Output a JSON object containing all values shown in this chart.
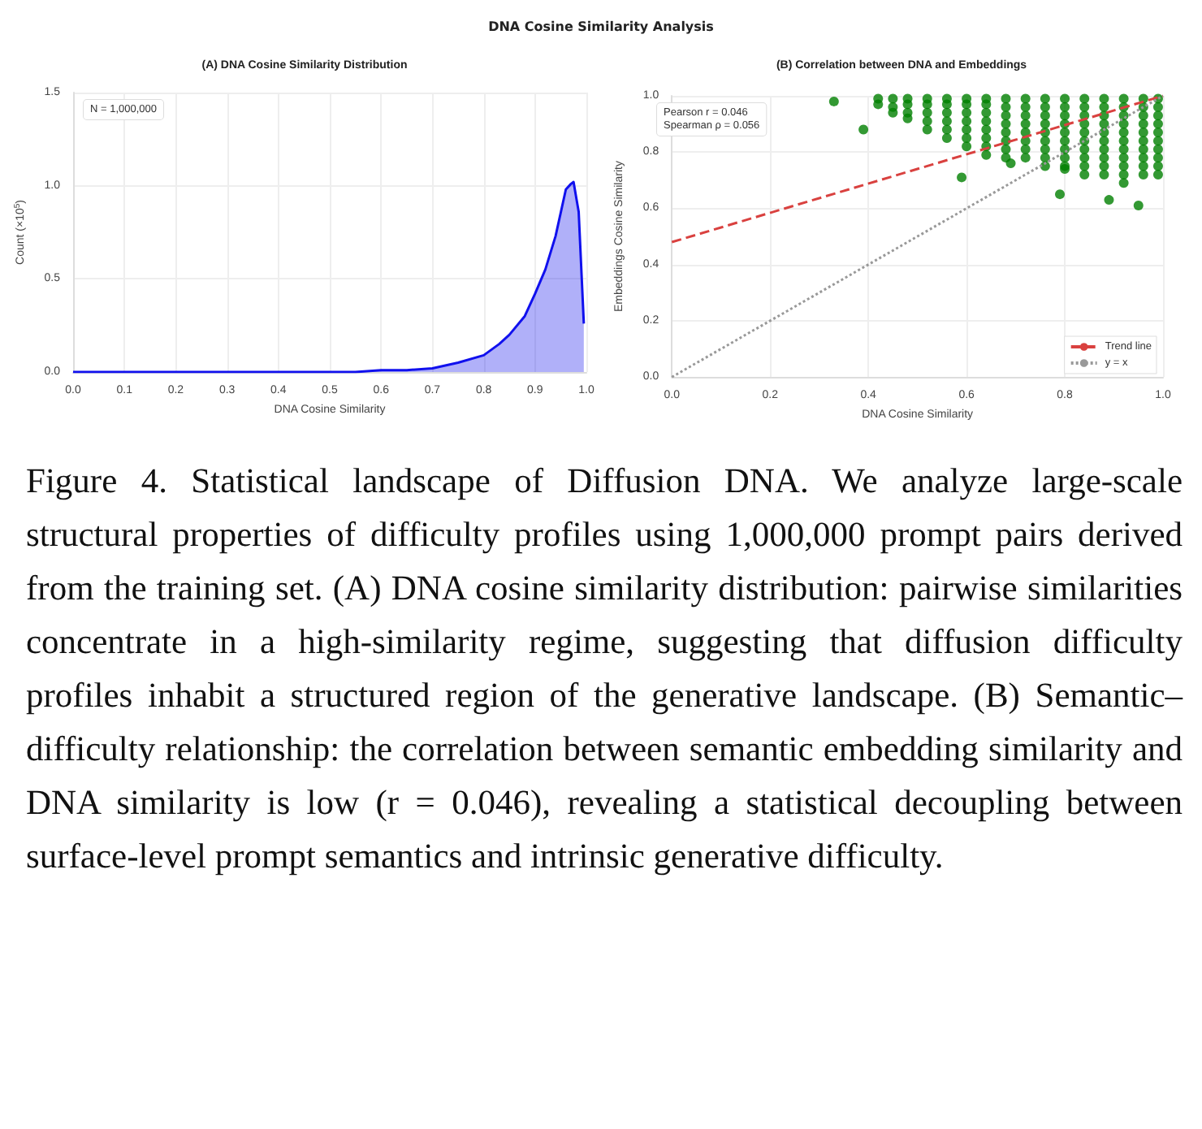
{
  "chart_data": [
    {
      "type": "area",
      "title": "DNA Cosine Similarity Analysis",
      "subtitle": "(A) DNA Cosine Similarity Distribution",
      "xlabel": "DNA Cosine Similarity",
      "ylabel": "Count (×10$^{5}$)",
      "annotations": [
        "N = 1,000,000"
      ],
      "x": [
        0,
        0.1,
        0.2,
        0.3,
        0.4,
        0.5,
        0.55,
        0.6,
        0.65,
        0.7,
        0.75,
        0.8,
        0.83,
        0.85,
        0.88,
        0.9,
        0.92,
        0.94,
        0.96,
        0.97,
        0.975,
        0.985,
        0.995
      ],
      "series": [
        {
          "color": "#1010ee",
          "values": [
            0,
            0,
            0,
            0,
            0,
            0,
            0,
            0.01,
            0.01,
            0.02,
            0.05,
            0.09,
            0.15,
            0.2,
            0.3,
            0.42,
            0.55,
            0.73,
            0.98,
            1.01,
            1.02,
            0.86,
            0.26
          ]
        }
      ],
      "xlim": [
        0,
        1
      ],
      "xticks": [
        {
          "value": 0,
          "label": "0.0"
        },
        {
          "value": 0.1,
          "label": "0.1"
        },
        {
          "value": 0.2,
          "label": "0.2"
        },
        {
          "value": 0.3,
          "label": "0.3"
        },
        {
          "value": 0.4,
          "label": "0.4"
        },
        {
          "value": 0.5,
          "label": "0.5"
        },
        {
          "value": 0.6,
          "label": "0.6"
        },
        {
          "value": 0.7,
          "label": "0.7"
        },
        {
          "value": 0.8,
          "label": "0.8"
        },
        {
          "value": 0.9,
          "label": "0.9"
        },
        {
          "value": 1,
          "label": "1.0"
        }
      ],
      "ylim": [
        0,
        1.5
      ],
      "yticks": [
        {
          "value": 0,
          "label": "0.0"
        },
        {
          "value": 0.5,
          "label": "0.5"
        },
        {
          "value": 1,
          "label": "1.0"
        },
        {
          "value": 1.5,
          "label": "1.5"
        }
      ],
      "grid": true,
      "legend": false
    },
    {
      "type": "scatter",
      "title": "(B) Correlation between DNA and Embeddings",
      "xlabel": "DNA Cosine Similarity",
      "ylabel": "Embeddings Cosine Similarity",
      "annotations": [
        "Pearson r = 0.046",
        "Spearman ρ = 0.056"
      ],
      "series": [
        {
          "type": "scatter",
          "color": "#008000",
          "marker": "circle",
          "x": [
            0.33,
            0.39,
            0.59,
            0.69,
            0.79,
            0.89,
            0.95,
            0.42,
            0.42,
            0.45,
            0.45,
            0.45,
            0.48,
            0.48,
            0.48,
            0.48,
            0.52,
            0.52,
            0.52,
            0.52,
            0.52,
            0.56,
            0.56,
            0.56,
            0.56,
            0.56,
            0.56,
            0.6,
            0.6,
            0.6,
            0.6,
            0.6,
            0.6,
            0.6,
            0.64,
            0.64,
            0.64,
            0.64,
            0.64,
            0.64,
            0.64,
            0.64,
            0.68,
            0.68,
            0.68,
            0.68,
            0.68,
            0.68,
            0.68,
            0.68,
            0.72,
            0.72,
            0.72,
            0.72,
            0.72,
            0.72,
            0.72,
            0.72,
            0.76,
            0.76,
            0.76,
            0.76,
            0.76,
            0.76,
            0.76,
            0.76,
            0.76,
            0.8,
            0.8,
            0.8,
            0.8,
            0.8,
            0.8,
            0.8,
            0.8,
            0.8,
            0.8,
            0.84,
            0.84,
            0.84,
            0.84,
            0.84,
            0.84,
            0.84,
            0.84,
            0.84,
            0.84,
            0.88,
            0.88,
            0.88,
            0.88,
            0.88,
            0.88,
            0.88,
            0.88,
            0.88,
            0.88,
            0.92,
            0.92,
            0.92,
            0.92,
            0.92,
            0.92,
            0.92,
            0.92,
            0.92,
            0.92,
            0.92,
            0.96,
            0.96,
            0.96,
            0.96,
            0.96,
            0.96,
            0.96,
            0.96,
            0.96,
            0.96,
            0.99,
            0.99,
            0.99,
            0.99,
            0.99,
            0.99,
            0.99,
            0.99,
            0.99,
            0.99
          ],
          "values": [
            0.98,
            0.88,
            0.71,
            0.76,
            0.65,
            0.63,
            0.61,
            0.99,
            0.97,
            0.99,
            0.96,
            0.94,
            0.99,
            0.97,
            0.94,
            0.92,
            0.99,
            0.97,
            0.94,
            0.91,
            0.88,
            0.99,
            0.97,
            0.94,
            0.91,
            0.88,
            0.85,
            0.99,
            0.97,
            0.94,
            0.91,
            0.88,
            0.85,
            0.82,
            0.99,
            0.97,
            0.94,
            0.91,
            0.88,
            0.85,
            0.82,
            0.79,
            0.99,
            0.96,
            0.93,
            0.9,
            0.87,
            0.84,
            0.81,
            0.78,
            0.99,
            0.96,
            0.93,
            0.9,
            0.87,
            0.84,
            0.81,
            0.78,
            0.99,
            0.96,
            0.93,
            0.9,
            0.87,
            0.84,
            0.81,
            0.78,
            0.75,
            0.99,
            0.96,
            0.93,
            0.9,
            0.87,
            0.84,
            0.81,
            0.78,
            0.75,
            0.74,
            0.99,
            0.96,
            0.93,
            0.9,
            0.87,
            0.84,
            0.81,
            0.78,
            0.75,
            0.72,
            0.99,
            0.96,
            0.93,
            0.9,
            0.87,
            0.84,
            0.81,
            0.78,
            0.75,
            0.72,
            0.99,
            0.96,
            0.93,
            0.9,
            0.87,
            0.84,
            0.81,
            0.78,
            0.75,
            0.72,
            0.69,
            0.99,
            0.96,
            0.93,
            0.9,
            0.87,
            0.84,
            0.81,
            0.78,
            0.75,
            0.72,
            0.99,
            0.96,
            0.93,
            0.9,
            0.87,
            0.84,
            0.81,
            0.78,
            0.75,
            0.72
          ]
        },
        {
          "type": "line",
          "name": "Trend line",
          "color": "#d9413f",
          "line_style": "dashed",
          "x": [
            0,
            1
          ],
          "values": [
            0.48,
            1.0
          ]
        },
        {
          "type": "line",
          "name": "y = x",
          "color": "#999999",
          "line_style": "dotted",
          "x": [
            0,
            1
          ],
          "values": [
            0,
            1
          ]
        }
      ],
      "xlim": [
        0,
        1
      ],
      "xticks": [
        {
          "value": 0,
          "label": "0.0"
        },
        {
          "value": 0.2,
          "label": "0.2"
        },
        {
          "value": 0.4,
          "label": "0.4"
        },
        {
          "value": 0.6,
          "label": "0.6"
        },
        {
          "value": 0.8,
          "label": "0.8"
        },
        {
          "value": 1,
          "label": "1.0"
        }
      ],
      "ylim": [
        0,
        1
      ],
      "yticks": [
        {
          "value": 0,
          "label": "0.0"
        },
        {
          "value": 0.2,
          "label": "0.2"
        },
        {
          "value": 0.4,
          "label": "0.4"
        },
        {
          "value": 0.6,
          "label": "0.6"
        },
        {
          "value": 0.8,
          "label": "0.8"
        },
        {
          "value": 1,
          "label": "1.0"
        }
      ],
      "grid": true,
      "legend": "bottom right"
    },
    {
      "type": "other",
      "annotations": [
        "Figure 4. Statistical landscape of Diffusion DNA. We analyze large-scale structural properties of difficulty profiles using 1,000,000 prompt pairs derived from the training set. (A) DNA cosine similarity distribution: pairwise similarities concentrate in a high-similarity regime, suggesting that diffusion difficulty profiles inhabit a structured region of the generative landscape. (B) Semantic–difficulty relationship: the correlation between semantic embedding similarity and DNA similarity is low (r = 0.046), revealing a statistical decoupling between surface-level prompt semantics and intrinsic generative difficulty."
      ]
    }
  ]
}
